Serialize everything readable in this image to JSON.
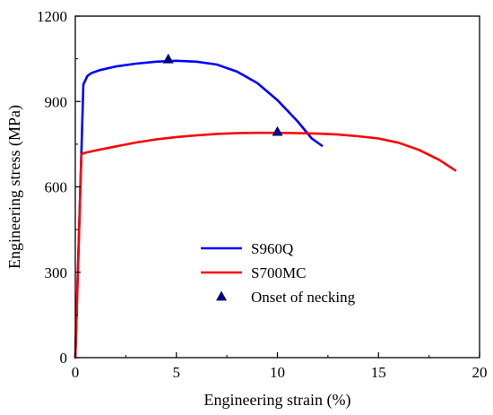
{
  "chart_data": {
    "type": "line",
    "xlabel": "Engineering strain (%)",
    "ylabel": "Engineering stress (MPa)",
    "xlim": [
      0,
      20
    ],
    "ylim": [
      0,
      1200
    ],
    "xticks": [
      0,
      5,
      10,
      15,
      20
    ],
    "yticks": [
      0,
      300,
      600,
      900,
      1200
    ],
    "grid": false,
    "legend_placement": "center-left",
    "series": [
      {
        "name": "S960Q",
        "color": "#0000ff",
        "points": [
          [
            0,
            0
          ],
          [
            0.3,
            720
          ],
          [
            0.4,
            960
          ],
          [
            0.5,
            975
          ],
          [
            0.6,
            990
          ],
          [
            0.8,
            1000
          ],
          [
            1.2,
            1010
          ],
          [
            2,
            1023
          ],
          [
            3,
            1033
          ],
          [
            4,
            1040
          ],
          [
            5,
            1043
          ],
          [
            6,
            1040
          ],
          [
            7,
            1030
          ],
          [
            8,
            1005
          ],
          [
            9,
            965
          ],
          [
            10,
            905
          ],
          [
            11,
            830
          ],
          [
            11.7,
            770
          ],
          [
            12.2,
            745
          ]
        ]
      },
      {
        "name": "S700MC",
        "color": "#ff0000",
        "points": [
          [
            0,
            0
          ],
          [
            0.3,
            715
          ],
          [
            0.5,
            720
          ],
          [
            1,
            728
          ],
          [
            2,
            742
          ],
          [
            3,
            756
          ],
          [
            4,
            767
          ],
          [
            5,
            775
          ],
          [
            6,
            781
          ],
          [
            7,
            786
          ],
          [
            8,
            789
          ],
          [
            9,
            790
          ],
          [
            10,
            790
          ],
          [
            11,
            789
          ],
          [
            12,
            787
          ],
          [
            13,
            784
          ],
          [
            14,
            778
          ],
          [
            15,
            770
          ],
          [
            16,
            755
          ],
          [
            17,
            730
          ],
          [
            18,
            695
          ],
          [
            18.8,
            658
          ]
        ]
      }
    ],
    "necking_marker": {
      "name": "Onset of necking",
      "color": "#00007f",
      "points": [
        [
          4.6,
          1048
        ],
        [
          10,
          793
        ]
      ]
    }
  }
}
